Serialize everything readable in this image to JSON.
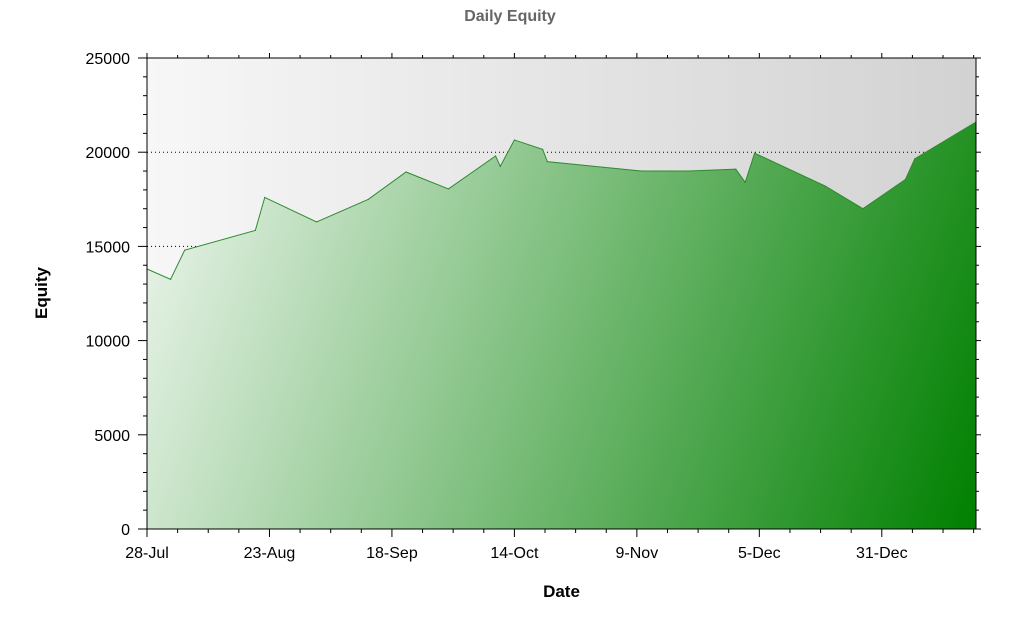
{
  "chart_data": {
    "type": "area",
    "title": "Daily Equity",
    "xlabel": "Date",
    "ylabel": "Equity",
    "ylim": [
      0,
      25000
    ],
    "y_ticks": [
      0,
      5000,
      10000,
      15000,
      20000,
      25000
    ],
    "y_tick_labels": [
      "0",
      "5000",
      "10000",
      "15000",
      "20000",
      "25000"
    ],
    "x_range": [
      "28-Jul",
      "20-Jan"
    ],
    "x_ticks": [
      "28-Jul",
      "23-Aug",
      "18-Sep",
      "14-Oct",
      "9-Nov",
      "5-Dec",
      "31-Dec"
    ],
    "gridlines_y": [
      15000,
      20000
    ],
    "grid": "dotted horizontal",
    "series": [
      {
        "fill_gradient": [
          "#e6f2e6",
          "#008000"
        ],
        "line_color": "#2e8b2e",
        "points": [
          {
            "x": "28-Jul",
            "y": 13800
          },
          {
            "x": "02-Aug",
            "y": 13250
          },
          {
            "x": "05-Aug",
            "y": 14800
          },
          {
            "x": "20-Aug",
            "y": 15850
          },
          {
            "x": "22-Aug",
            "y": 17600
          },
          {
            "x": "02-Sep",
            "y": 16300
          },
          {
            "x": "13-Sep",
            "y": 17500
          },
          {
            "x": "21-Sep",
            "y": 18950
          },
          {
            "x": "30-Sep",
            "y": 18050
          },
          {
            "x": "10-Oct",
            "y": 19800
          },
          {
            "x": "11-Oct",
            "y": 19250
          },
          {
            "x": "14-Oct",
            "y": 20650
          },
          {
            "x": "20-Oct",
            "y": 20150
          },
          {
            "x": "21-Oct",
            "y": 19500
          },
          {
            "x": "10-Nov",
            "y": 19000
          },
          {
            "x": "20-Nov",
            "y": 19000
          },
          {
            "x": "30-Nov",
            "y": 19100
          },
          {
            "x": "02-Dec",
            "y": 18400
          },
          {
            "x": "04-Dec",
            "y": 19950
          },
          {
            "x": "19-Dec",
            "y": 18200
          },
          {
            "x": "27-Dec",
            "y": 17000
          },
          {
            "x": "05-Jan",
            "y": 18550
          },
          {
            "x": "07-Jan",
            "y": 19650
          },
          {
            "x": "20-Jan",
            "y": 21600
          }
        ]
      }
    ]
  }
}
